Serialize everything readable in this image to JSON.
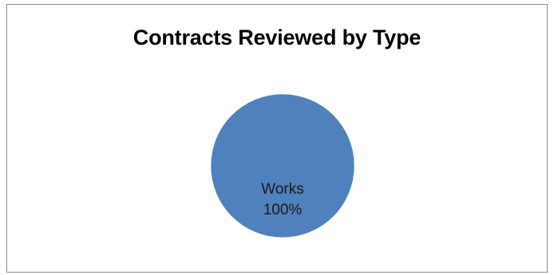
{
  "chart_data": {
    "type": "pie",
    "title": "Contracts Reviewed by Type",
    "categories": [
      "Works"
    ],
    "values": [
      100
    ],
    "data_labels": [
      {
        "category": "Works",
        "percent": "100%"
      }
    ],
    "colors": [
      "#4f81bd"
    ],
    "legend": "none"
  }
}
